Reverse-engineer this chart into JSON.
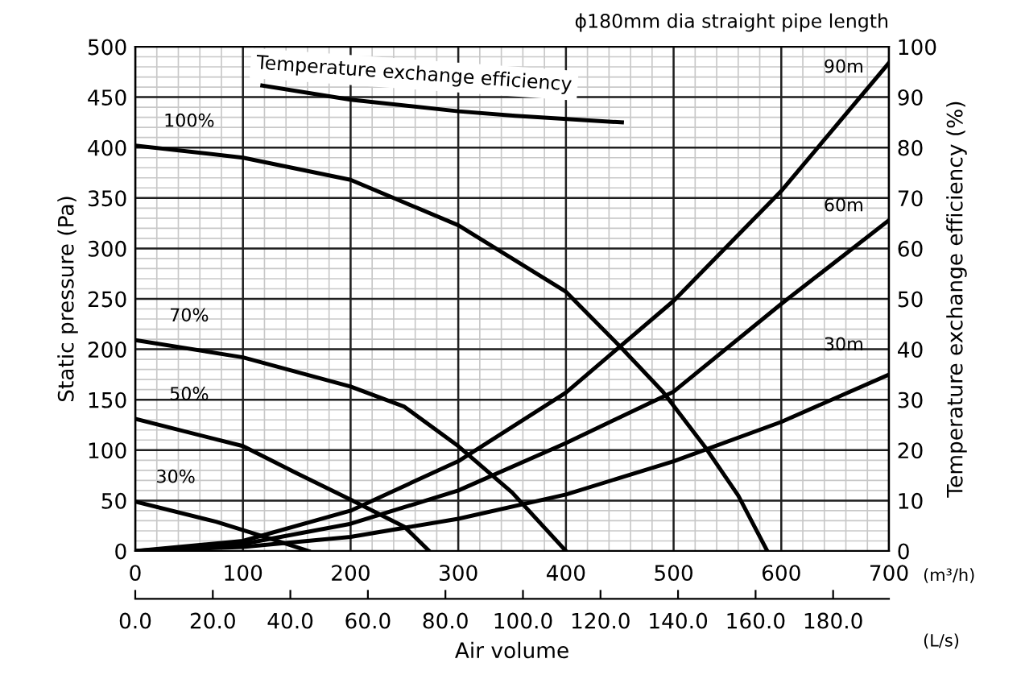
{
  "chart_data": {
    "type": "line",
    "title": "ϕ180mm dia straight pipe length",
    "xlabel": "Air volume",
    "ylabel": "Static pressure (Pa)",
    "y2label": "Temperature exchange efficiency (%)",
    "annotations": [
      "Temperature exchange efficiency",
      "(m³/h)",
      "(L/s)"
    ],
    "series": [
      {
        "name": "100%",
        "color": "#000000",
        "x": [
          0,
          100,
          200,
          300,
          350,
          400,
          450,
          490,
          530,
          560,
          587
        ],
        "values": [
          402,
          390,
          368,
          323,
          290,
          257,
          203,
          158,
          102,
          55,
          0
        ]
      },
      {
        "name": "70%",
        "color": "#000000",
        "x": [
          0,
          100,
          200,
          250,
          300,
          350,
          400
        ],
        "values": [
          209,
          192,
          163,
          143,
          104,
          58,
          0
        ]
      },
      {
        "name": "50%",
        "color": "#000000",
        "x": [
          0,
          100,
          150,
          200,
          250,
          273
        ],
        "values": [
          131,
          104,
          77,
          51,
          24,
          0
        ]
      },
      {
        "name": "30%",
        "color": "#000000",
        "x": [
          0,
          75,
          123,
          161
        ],
        "values": [
          49,
          29,
          13,
          0
        ]
      },
      {
        "name": "90m",
        "color": "#000000",
        "x": [
          0,
          100,
          200,
          300,
          400,
          500,
          600,
          700
        ],
        "values": [
          0,
          10,
          40,
          89,
          157,
          248,
          357,
          484
        ]
      },
      {
        "name": "60m",
        "color": "#000000",
        "x": [
          0,
          100,
          200,
          300,
          400,
          500,
          600,
          700
        ],
        "values": [
          0,
          7,
          27,
          60,
          107,
          158,
          245,
          328
        ]
      },
      {
        "name": "30m",
        "color": "#000000",
        "x": [
          0,
          100,
          200,
          300,
          400,
          500,
          600,
          700
        ],
        "values": [
          0,
          4,
          14,
          32,
          56,
          89,
          128,
          175
        ]
      },
      {
        "color": "#000000",
        "axis": "y2",
        "x": [
          118,
          200,
          300,
          353,
          452
        ],
        "values": [
          92.3,
          89.5,
          87.2,
          86.3,
          85.0
        ]
      }
    ],
    "xlim": [
      0,
      700
    ],
    "xticks": [
      0,
      100,
      200,
      300,
      400,
      500,
      600,
      700
    ],
    "x2lim": [
      0,
      194.4
    ],
    "x2ticks": [
      {
        "value": 0,
        "label": "0.0"
      },
      {
        "value": 20,
        "label": "20.0"
      },
      {
        "value": 40,
        "label": "40.0"
      },
      {
        "value": 60,
        "label": "60.0"
      },
      {
        "value": 80,
        "label": "80.0"
      },
      {
        "value": 100,
        "label": "100.0"
      },
      {
        "value": 120,
        "label": "120.0"
      },
      {
        "value": 140,
        "label": "140.0"
      },
      {
        "value": 160,
        "label": "160.0"
      },
      {
        "value": 180,
        "label": "180.0"
      }
    ],
    "ylim": [
      0,
      500
    ],
    "yticks": [
      0,
      50,
      100,
      150,
      200,
      250,
      300,
      350,
      400,
      450,
      500
    ],
    "y2lim": [
      0,
      100
    ],
    "y2ticks": [
      0,
      10,
      20,
      30,
      40,
      50,
      60,
      70,
      80,
      90,
      100
    ],
    "grid": true,
    "line_style": "solid",
    "marker": "none",
    "legend": false
  }
}
